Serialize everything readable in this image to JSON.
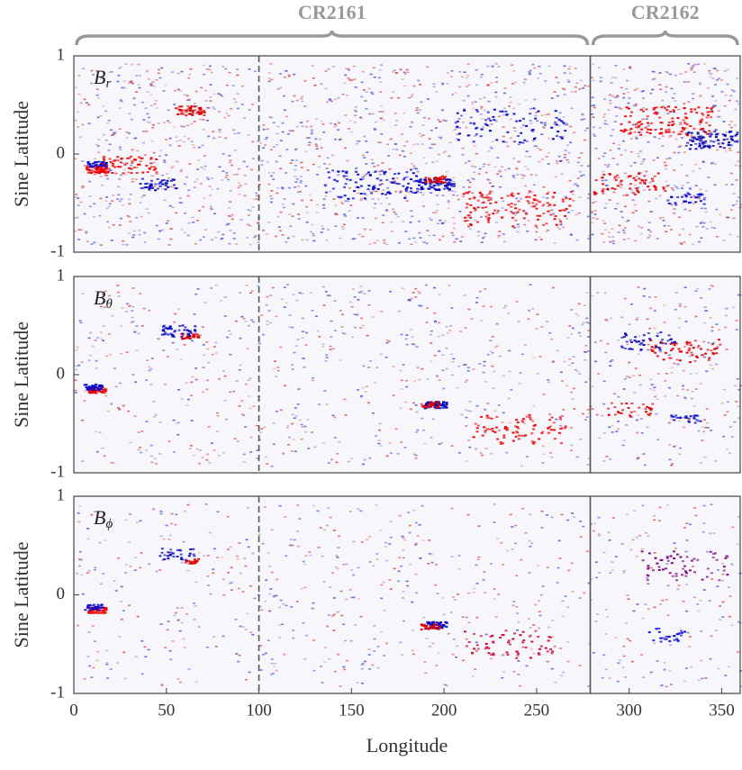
{
  "chart_data": [
    {
      "type": "heatmap",
      "label": "B",
      "label_sub": "r",
      "ylabel": "Sine Latitude",
      "xlim": [
        0,
        360
      ],
      "ylim": [
        -1,
        1
      ],
      "yticks": [
        -1,
        0,
        1
      ],
      "vlines": [
        {
          "x": 100,
          "style": "dashed"
        },
        {
          "x": 279,
          "style": "solid"
        }
      ],
      "brackets": [
        {
          "label": "CR2161",
          "x": [
            0,
            279
          ]
        },
        {
          "label": "CR2162",
          "x": [
            279,
            360
          ]
        }
      ]
    },
    {
      "type": "heatmap",
      "label": "B",
      "label_sub": "θ",
      "ylabel": "Sine Latitude",
      "xlim": [
        0,
        360
      ],
      "ylim": [
        -1,
        1
      ],
      "yticks": [
        -1,
        0,
        1
      ],
      "vlines": [
        {
          "x": 100,
          "style": "dashed"
        },
        {
          "x": 279,
          "style": "solid"
        }
      ]
    },
    {
      "type": "heatmap",
      "label": "B",
      "label_sub": "ϕ",
      "ylabel": "Sine Latitude",
      "xlabel": "Longitude",
      "xlim": [
        0,
        360
      ],
      "ylim": [
        -1,
        1
      ],
      "yticks": [
        -1,
        0,
        1
      ],
      "xticks": [
        0,
        50,
        100,
        150,
        200,
        250,
        300,
        350
      ],
      "vlines": [
        {
          "x": 100,
          "style": "dashed"
        },
        {
          "x": 279,
          "style": "solid"
        }
      ]
    }
  ]
}
